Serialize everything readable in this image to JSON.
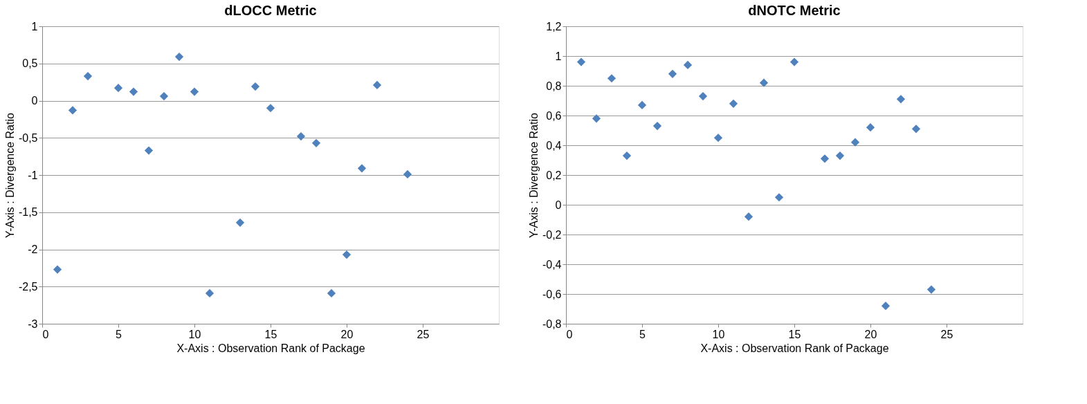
{
  "chart_data": [
    {
      "type": "scatter",
      "title": "dLOCC Metric",
      "xlabel": "X-Axis : Observation Rank of Package",
      "ylabel": "Y-Axis : Divergence Ratio",
      "marker": "diamond",
      "grid": "y",
      "x": [
        1,
        2,
        3,
        5,
        6,
        7,
        8,
        9,
        10,
        11,
        13,
        14,
        15,
        17,
        18,
        19,
        20,
        21,
        22,
        24
      ],
      "series": [
        {
          "color": "#4f81bd",
          "values": [
            -2.27,
            -0.13,
            0.33,
            0.17,
            0.12,
            -0.67,
            0.06,
            0.59,
            0.12,
            -2.59,
            -1.64,
            0.19,
            -0.1,
            -0.48,
            -0.57,
            -2.59,
            -2.07,
            -0.91,
            0.21,
            -0.99
          ]
        }
      ],
      "xlim": [
        0,
        30
      ],
      "xticks": [
        0,
        5,
        10,
        15,
        20,
        25
      ],
      "ylim": [
        -3,
        1
      ],
      "yticks": [
        -3,
        {
          "value": -2.5,
          "label": "-2,5"
        },
        -2,
        {
          "value": -1.5,
          "label": "-1,5"
        },
        -1,
        {
          "value": -0.5,
          "label": "-0,5"
        },
        0,
        {
          "value": 0.5,
          "label": "0,5"
        },
        1
      ]
    },
    {
      "type": "scatter",
      "title": "dNOTC Metric",
      "xlabel": "X-Axis : Observation Rank of Package",
      "ylabel": "Y-Axis : Divergence Ratio",
      "marker": "diamond",
      "grid": "y",
      "x": [
        1,
        2,
        3,
        4,
        5,
        6,
        7,
        8,
        9,
        10,
        11,
        12,
        13,
        14,
        15,
        17,
        18,
        19,
        20,
        21,
        22,
        23,
        24
      ],
      "series": [
        {
          "color": "#4f81bd",
          "values": [
            0.96,
            0.58,
            0.85,
            0.33,
            0.67,
            0.53,
            0.88,
            0.94,
            0.73,
            0.45,
            0.68,
            -0.08,
            0.82,
            0.05,
            0.96,
            0.31,
            0.33,
            0.42,
            0.52,
            -0.68,
            0.71,
            0.51,
            -0.57
          ]
        }
      ],
      "xlim": [
        0,
        30
      ],
      "xticks": [
        0,
        5,
        10,
        15,
        20,
        25
      ],
      "ylim": [
        -0.8,
        1.2
      ],
      "yticks": [
        {
          "value": -0.8,
          "label": "-0,8"
        },
        {
          "value": -0.6,
          "label": "-0,6"
        },
        {
          "value": -0.4,
          "label": "-0,4"
        },
        {
          "value": -0.2,
          "label": "-0,2"
        },
        0,
        {
          "value": 0.2,
          "label": "0,2"
        },
        {
          "value": 0.4,
          "label": "0,4"
        },
        {
          "value": 0.6,
          "label": "0,6"
        },
        {
          "value": 0.8,
          "label": "0,8"
        },
        1,
        {
          "value": 1.2,
          "label": "1,2"
        }
      ]
    }
  ]
}
